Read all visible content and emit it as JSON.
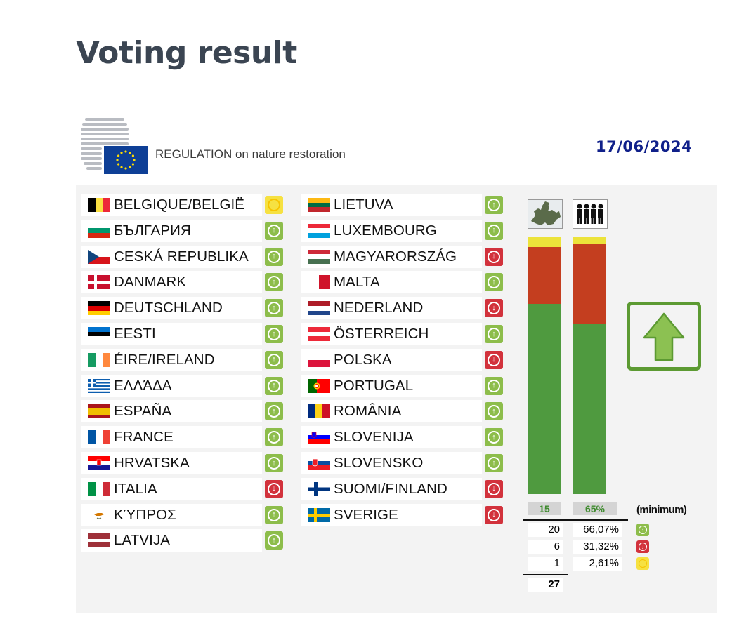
{
  "page_title": "Voting result",
  "header": {
    "document_title": "REGULATION on nature restoration",
    "date": "17/06/2024"
  },
  "legend_glyphs": {
    "yes": "↑",
    "no": "↓",
    "abstain": "○"
  },
  "countries_left": [
    {
      "name": "BELGIQUE/BELGIË",
      "flag": "be",
      "vote": "abstain"
    },
    {
      "name": "БЪЛГАРИЯ",
      "flag": "bg",
      "vote": "yes"
    },
    {
      "name": "CESKÁ REPUBLIKA",
      "flag": "cz",
      "vote": "yes"
    },
    {
      "name": "DANMARK",
      "flag": "dk",
      "vote": "yes"
    },
    {
      "name": "DEUTSCHLAND",
      "flag": "de",
      "vote": "yes"
    },
    {
      "name": "EESTI",
      "flag": "ee",
      "vote": "yes"
    },
    {
      "name": "ÉIRE/IRELAND",
      "flag": "ie",
      "vote": "yes"
    },
    {
      "name": "ΕΛΛΆΔΑ",
      "flag": "gr",
      "vote": "yes"
    },
    {
      "name": "ESPAÑA",
      "flag": "es",
      "vote": "yes"
    },
    {
      "name": "FRANCE",
      "flag": "fr",
      "vote": "yes"
    },
    {
      "name": "HRVATSKA",
      "flag": "hr",
      "vote": "yes"
    },
    {
      "name": "ITALIA",
      "flag": "it",
      "vote": "no"
    },
    {
      "name": "ΚΎΠΡΟΣ",
      "flag": "cy",
      "vote": "yes"
    },
    {
      "name": "LATVIJA",
      "flag": "lv",
      "vote": "yes"
    }
  ],
  "countries_right": [
    {
      "name": "LIETUVA",
      "flag": "lt",
      "vote": "yes"
    },
    {
      "name": "LUXEMBOURG",
      "flag": "lu",
      "vote": "yes"
    },
    {
      "name": "MAGYARORSZÁG",
      "flag": "hu",
      "vote": "no"
    },
    {
      "name": "MALTA",
      "flag": "mt",
      "vote": "yes"
    },
    {
      "name": "NEDERLAND",
      "flag": "nl",
      "vote": "no"
    },
    {
      "name": "ÖSTERREICH",
      "flag": "at",
      "vote": "yes"
    },
    {
      "name": "POLSKA",
      "flag": "pl",
      "vote": "no"
    },
    {
      "name": "PORTUGAL",
      "flag": "pt",
      "vote": "yes"
    },
    {
      "name": "ROMÂNIA",
      "flag": "ro",
      "vote": "yes"
    },
    {
      "name": "SLOVENIJA",
      "flag": "si",
      "vote": "yes"
    },
    {
      "name": "SLOVENSKO",
      "flag": "sk",
      "vote": "yes"
    },
    {
      "name": "SUOMI/FINLAND",
      "flag": "fi",
      "vote": "no"
    },
    {
      "name": "SVERIGE",
      "flag": "se",
      "vote": "no"
    }
  ],
  "bars": {
    "states": {
      "icon": "europe-map-icon",
      "yes_fraction": 0.7407,
      "no_fraction": 0.2222,
      "abstain_fraction": 0.037
    },
    "population": {
      "icon": "population-icon",
      "yes_fraction": 0.6607,
      "no_fraction": 0.3132,
      "abstain_fraction": 0.0261
    }
  },
  "thresholds": {
    "states": "15",
    "population": "65%",
    "label": "(minimum)"
  },
  "totals": [
    {
      "count": "20",
      "percent": "66,07%",
      "vote": "yes"
    },
    {
      "count": "6",
      "percent": "31,32%",
      "vote": "no"
    },
    {
      "count": "1",
      "percent": "2,61%",
      "vote": "abstain"
    }
  ],
  "total_count": "27",
  "result": {
    "outcome": "adopted",
    "icon": "big-up-arrow-icon"
  },
  "colors": {
    "yes": "#4f9a3f",
    "no": "#c43e1f",
    "abstain": "#ece33a",
    "yes_icon": "#8dbd4b",
    "no_icon": "#d2323c",
    "abstain_icon": "#f6e141",
    "result_border": "#5c9a32"
  }
}
